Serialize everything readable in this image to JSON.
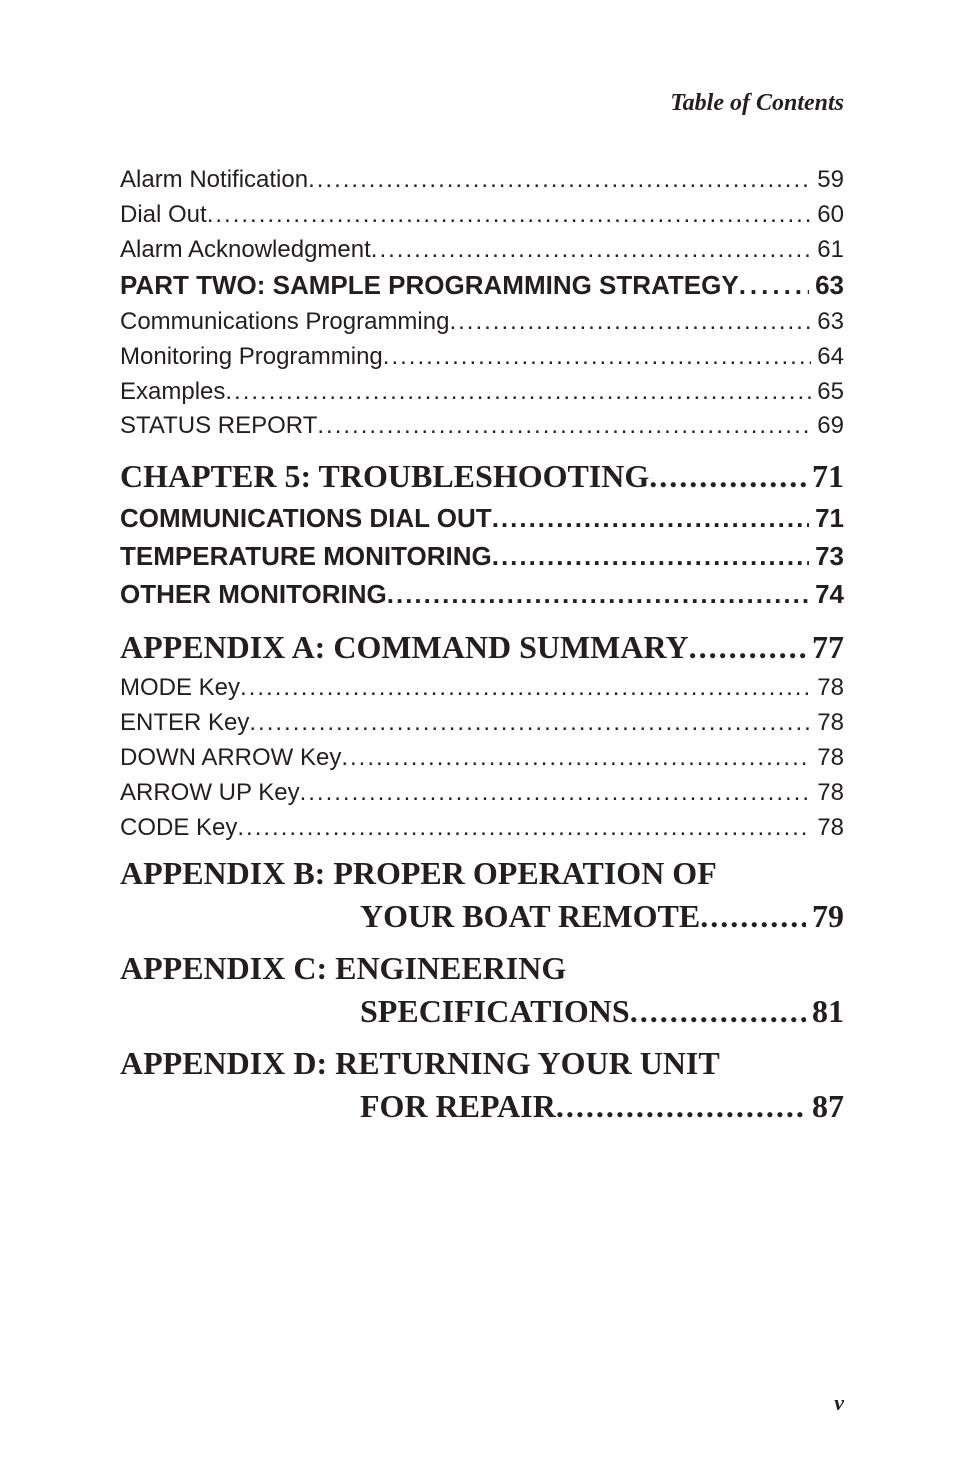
{
  "header": "Table of Contents",
  "footer": "v",
  "entries": [
    {
      "level": "sub",
      "label": "Alarm Notification",
      "page": "59"
    },
    {
      "level": "sub",
      "label": "Dial Out",
      "page": "60"
    },
    {
      "level": "sub",
      "label": "Alarm Acknowledgment",
      "page": "61"
    },
    {
      "level": "part",
      "label": "PART TWO: SAMPLE PROGRAMMING STRATEGY",
      "page": "63"
    },
    {
      "level": "sub",
      "label": "Communications Programming",
      "page": "63"
    },
    {
      "level": "sub",
      "label": "Monitoring Programming",
      "page": "64"
    },
    {
      "level": "sub",
      "label": "Examples",
      "page": "65"
    },
    {
      "level": "sub",
      "label": "STATUS REPORT",
      "page": "69"
    },
    {
      "level": "chap",
      "label": "CHAPTER 5: TROUBLESHOOTING",
      "page": "71"
    },
    {
      "level": "sect",
      "label": "COMMUNICATIONS DIAL OUT",
      "page": "71"
    },
    {
      "level": "sect",
      "label": "TEMPERATURE MONITORING",
      "page": "73"
    },
    {
      "level": "sect",
      "label": "OTHER MONITORING",
      "page": "74"
    },
    {
      "level": "appx",
      "label": "APPENDIX A: COMMAND SUMMARY",
      "page": "77"
    },
    {
      "level": "sub",
      "label": "MODE Key",
      "page": "78"
    },
    {
      "level": "sub",
      "label": "ENTER Key",
      "page": "78"
    },
    {
      "level": "sub",
      "label": "DOWN ARROW Key",
      "page": "78"
    },
    {
      "level": "sub",
      "label": "ARROW UP Key",
      "page": "78"
    },
    {
      "level": "sub",
      "label": "CODE Key",
      "page": "78"
    },
    {
      "level": "appx-multi",
      "line1": "APPENDIX B: PROPER OPERATION OF",
      "line2": "YOUR BOAT REMOTE",
      "page": "79"
    },
    {
      "level": "appx-multi",
      "line1": "APPENDIX C: ENGINEERING",
      "line2": "SPECIFICATIONS",
      "page": "81"
    },
    {
      "level": "appx-multi",
      "line1": "APPENDIX D: RETURNING YOUR UNIT",
      "line2": "FOR REPAIR",
      "page": "87"
    }
  ]
}
